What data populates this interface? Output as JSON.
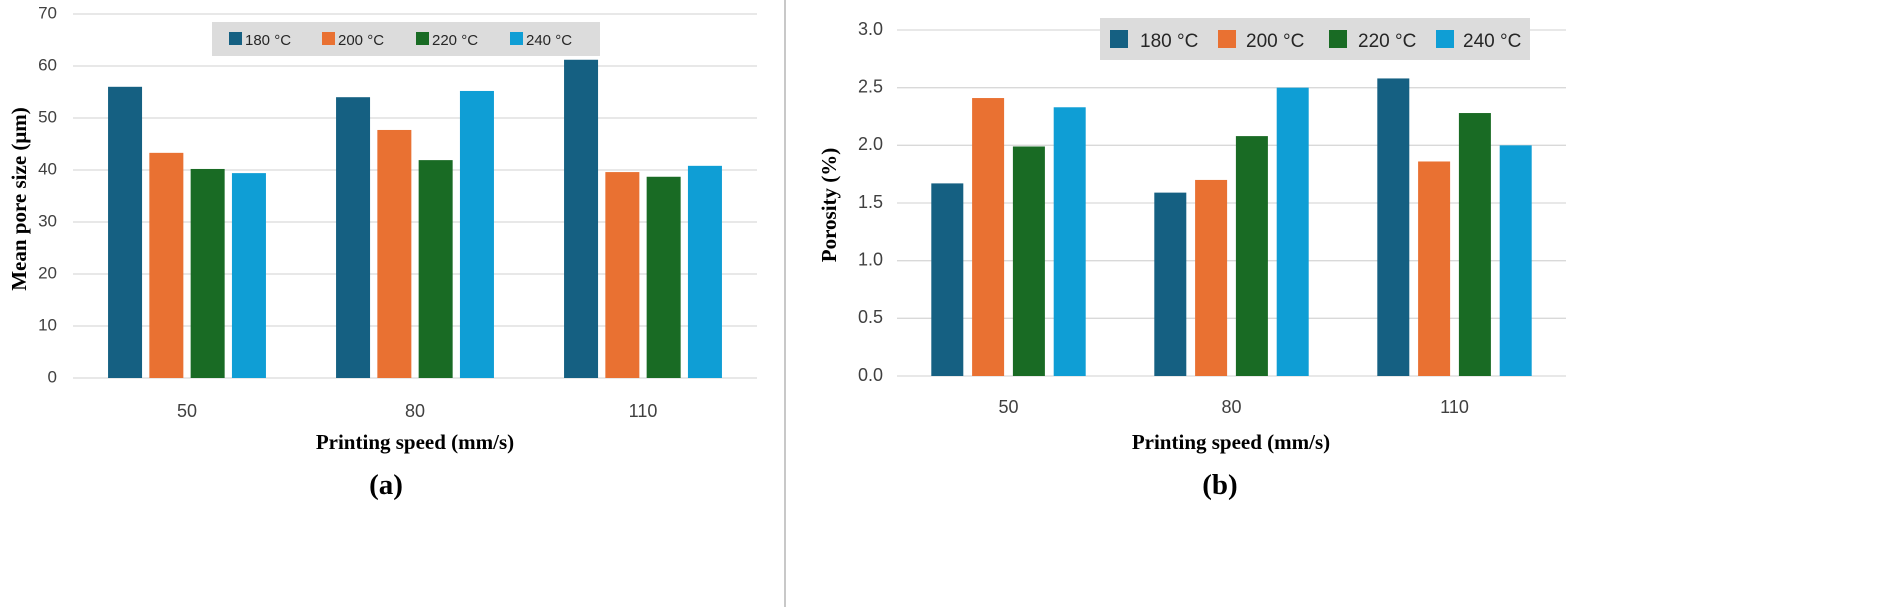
{
  "chart_data": [
    {
      "type": "bar",
      "panel_label": "(a)",
      "title": "",
      "xlabel": "Printing speed (mm/s)",
      "ylabel": "Mean pore size (μm)",
      "ylim": [
        0,
        70
      ],
      "ytick_labels": [
        "0",
        "10",
        "20",
        "30",
        "40",
        "50",
        "60",
        "70"
      ],
      "grid": true,
      "legend_position": "top-center",
      "categories": [
        "50",
        "80",
        "110"
      ],
      "series": [
        {
          "name": "180 °C",
          "color": "#156082",
          "values": [
            56.0,
            54.0,
            61.2
          ]
        },
        {
          "name": "200 °C",
          "color": "#e97132",
          "values": [
            43.3,
            47.7,
            39.6
          ]
        },
        {
          "name": "220 °C",
          "color": "#196b24",
          "values": [
            40.2,
            41.9,
            38.7
          ]
        },
        {
          "name": "240 °C",
          "color": "#0f9ed5",
          "values": [
            39.4,
            55.2,
            40.8
          ]
        }
      ]
    },
    {
      "type": "bar",
      "panel_label": "(b)",
      "title": "",
      "xlabel": "Printing speed (mm/s)",
      "ylabel": "Porosity (%)",
      "ylim": [
        0,
        3
      ],
      "ytick_labels": [
        "0.0",
        "0.5",
        "1.0",
        "1.5",
        "2.0",
        "2.5",
        "3.0"
      ],
      "grid": true,
      "legend_position": "top-right",
      "categories": [
        "50",
        "80",
        "110"
      ],
      "series": [
        {
          "name": "180 °C",
          "color": "#156082",
          "values": [
            1.67,
            1.59,
            2.58
          ]
        },
        {
          "name": "200 °C",
          "color": "#e97132",
          "values": [
            2.41,
            1.7,
            1.86
          ]
        },
        {
          "name": "220 °C",
          "color": "#196b24",
          "values": [
            1.99,
            2.08,
            2.28
          ]
        },
        {
          "name": "240 °C",
          "color": "#0f9ed5",
          "values": [
            2.33,
            2.5,
            2.0
          ]
        }
      ]
    }
  ]
}
